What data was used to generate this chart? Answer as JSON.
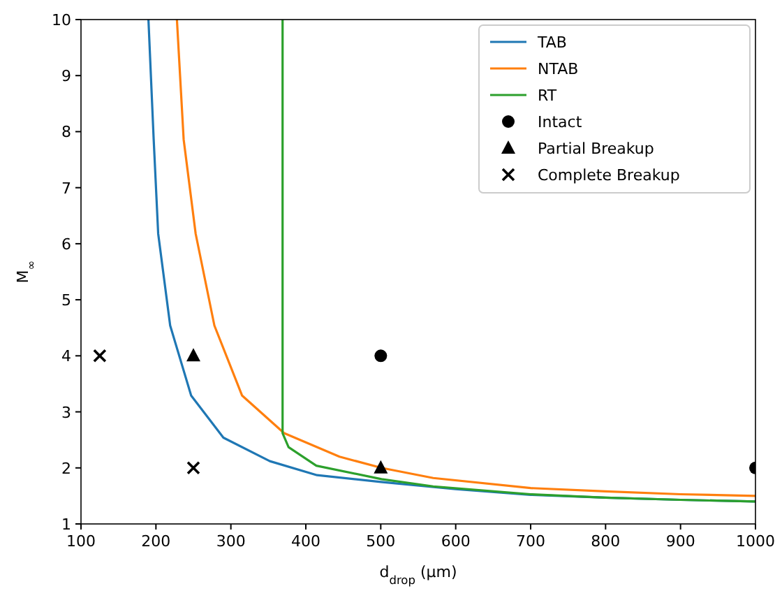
{
  "chart_data": {
    "type": "line",
    "xlabel": "d$_{drop}$ (μm)",
    "ylabel": "M$_{∞}$",
    "xlim": [
      100,
      1000
    ],
    "ylim": [
      1,
      10
    ],
    "xticks": [
      100,
      200,
      300,
      400,
      500,
      600,
      700,
      800,
      900,
      1000
    ],
    "yticks": [
      1,
      2,
      3,
      4,
      5,
      6,
      7,
      8,
      9,
      10
    ],
    "grid": false,
    "legend": "top right",
    "series": [
      {
        "name": "TAB",
        "color": "#1f77b4",
        "x": [
          190,
          197,
          203,
          219,
          247,
          290,
          352,
          415,
          500,
          600,
          700,
          800,
          900,
          1000
        ],
        "values": [
          10,
          7.86,
          6.18,
          4.54,
          3.29,
          2.54,
          2.12,
          1.87,
          1.75,
          1.62,
          1.52,
          1.47,
          1.43,
          1.4
        ]
      },
      {
        "name": "NTAB",
        "color": "#ff7f0e",
        "x": [
          228,
          237,
          253,
          278,
          315,
          371,
          445,
          501,
          570,
          700,
          800,
          900,
          1000
        ],
        "values": [
          10,
          7.86,
          6.18,
          4.54,
          3.29,
          2.62,
          2.2,
          2.0,
          1.82,
          1.64,
          1.58,
          1.53,
          1.5
        ]
      },
      {
        "name": "RT",
        "color": "#2ca02c",
        "x": [
          369,
          369,
          377,
          414,
          501,
          570,
          700,
          800,
          900,
          1000
        ],
        "values": [
          10,
          2.62,
          2.37,
          2.04,
          1.8,
          1.67,
          1.53,
          1.47,
          1.43,
          1.4
        ]
      },
      {
        "name": "Intact",
        "type": "scatter",
        "marker": "circle",
        "color": "#000000",
        "x": [
          500,
          1000
        ],
        "values": [
          4,
          2
        ]
      },
      {
        "name": "Partial Breakup",
        "type": "scatter",
        "marker": "triangle",
        "color": "#000000",
        "x": [
          250,
          500
        ],
        "values": [
          4,
          2
        ]
      },
      {
        "name": "Complete Breakup",
        "type": "scatter",
        "marker": "cross",
        "color": "#000000",
        "x": [
          125,
          250
        ],
        "values": [
          4,
          2
        ]
      }
    ]
  }
}
